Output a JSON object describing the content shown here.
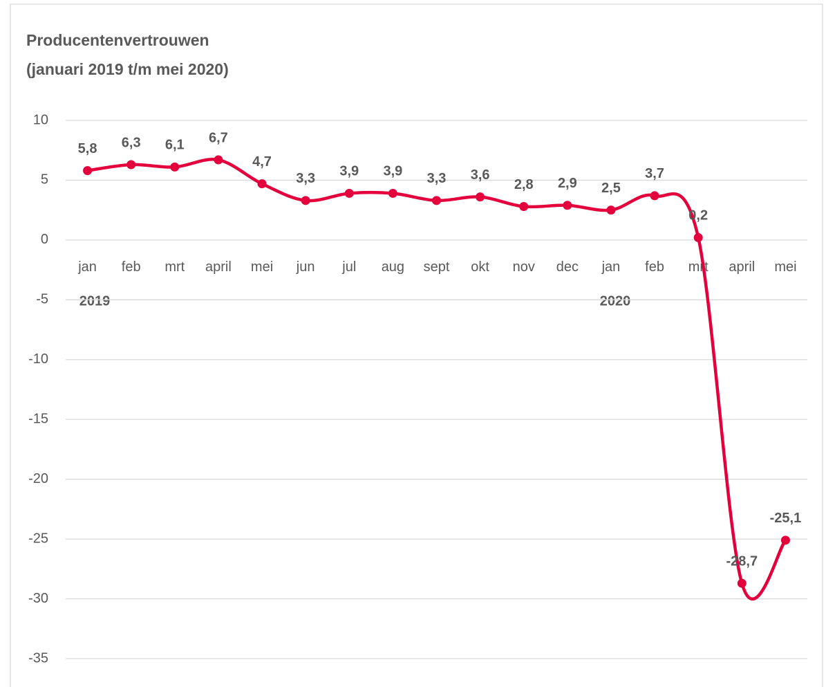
{
  "chart_data": {
    "type": "line",
    "title": "Producentenvertrouwen",
    "subtitle": "(januari 2019 t/m mei 2020)",
    "categories": [
      "jan",
      "feb",
      "mrt",
      "april",
      "mei",
      "jun",
      "jul",
      "aug",
      "sept",
      "okt",
      "nov",
      "dec",
      "jan",
      "feb",
      "mrt",
      "april",
      "mei"
    ],
    "values": [
      5.8,
      6.3,
      6.1,
      6.7,
      4.7,
      3.3,
      3.9,
      3.9,
      3.3,
      3.6,
      2.8,
      2.9,
      2.5,
      3.7,
      0.2,
      -28.7,
      -25.1
    ],
    "value_labels": [
      "5,8",
      "6,3",
      "6,1",
      "6,7",
      "4,7",
      "3,3",
      "3,9",
      "3,9",
      "3,3",
      "3,6",
      "2,8",
      "2,9",
      "2,5",
      "3,7",
      "0,2",
      "-28,7",
      "-25,1"
    ],
    "color": "#e3003c",
    "ylim": [
      -35,
      10
    ],
    "yticks": [
      10,
      5,
      0,
      -5,
      -10,
      -15,
      -20,
      -25,
      -30,
      -35
    ],
    "grid": true,
    "smooth": true,
    "annotations": [
      "2019",
      "2020"
    ]
  }
}
